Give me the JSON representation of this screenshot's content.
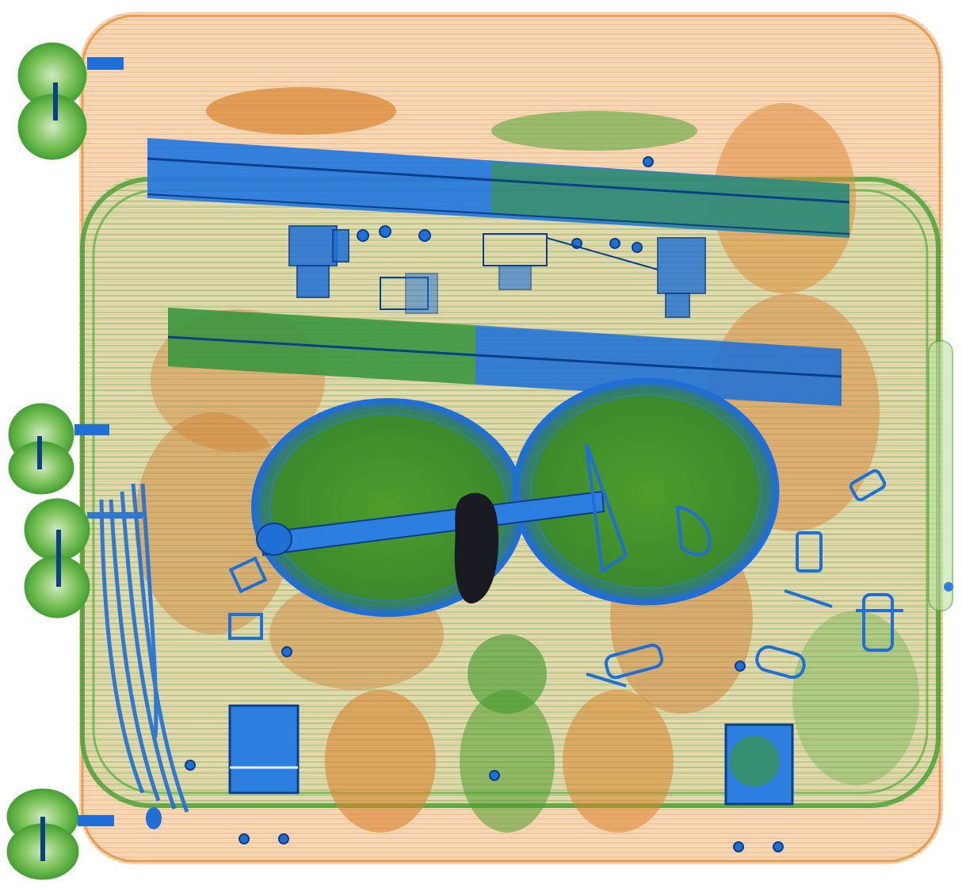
{
  "image": {
    "kind": "x-ray baggage scan",
    "palette": {
      "background": "#ffffff",
      "organic": "#e89a4a",
      "organic_dense": "#c8761f",
      "mixed": "#3f9a2a",
      "mixed_light": "#7cc35a",
      "inorganic": "#1f6fd6",
      "inorganic_dark": "#0b3f8a",
      "opaque": "#1a1a22"
    }
  }
}
